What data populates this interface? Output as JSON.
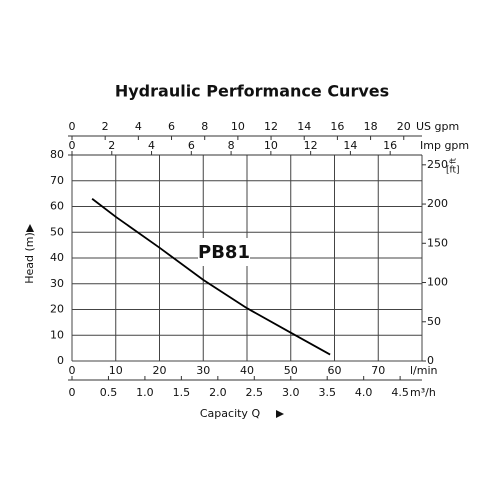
{
  "chart_data": {
    "type": "line",
    "title": "Hydraulic Performance Curves",
    "xlabel": "Capacity Q",
    "ylabel": "Head (m)",
    "xunit": "l/min",
    "xlim": [
      0,
      80
    ],
    "xticks": [
      0,
      10,
      20,
      30,
      40,
      50,
      60,
      70
    ],
    "ylim": [
      0,
      80
    ],
    "yticks": [
      0,
      10,
      20,
      30,
      40,
      50,
      60,
      70,
      80
    ],
    "y2label": "ft",
    "y2unit": "[ft]",
    "y2lim": [
      0,
      262.5
    ],
    "y2ticks": [
      0,
      50,
      100,
      150,
      200,
      250
    ],
    "x_axes": [
      {
        "name": "US gpm",
        "position": "top",
        "lim": [
          0,
          21.1
        ],
        "ticks": [
          0,
          2,
          4,
          6,
          8,
          10,
          12,
          14,
          16,
          18,
          20
        ]
      },
      {
        "name": "Imp gpm",
        "position": "top",
        "lim": [
          0,
          17.6
        ],
        "ticks": [
          0,
          2,
          4,
          6,
          8,
          10,
          12,
          14,
          16
        ]
      },
      {
        "name": "m³/h",
        "position": "bottom",
        "lim": [
          0,
          4.8
        ],
        "ticks": [
          0,
          0.5,
          {
            "value": 1,
            "label": "1.0"
          },
          1.5,
          {
            "value": 2,
            "label": "2.0"
          },
          2.5,
          {
            "value": 3,
            "label": "3.0"
          },
          3.5,
          {
            "value": 4,
            "label": "4.0"
          },
          4.5
        ]
      }
    ],
    "grid": true,
    "x": [
      4.6,
      10,
      20,
      30,
      40,
      50,
      59
    ],
    "series": [
      {
        "name": "PB81",
        "color": "#000000",
        "values": [
          63,
          56,
          44,
          31.5,
          20.5,
          11,
          2.5
        ]
      }
    ]
  }
}
